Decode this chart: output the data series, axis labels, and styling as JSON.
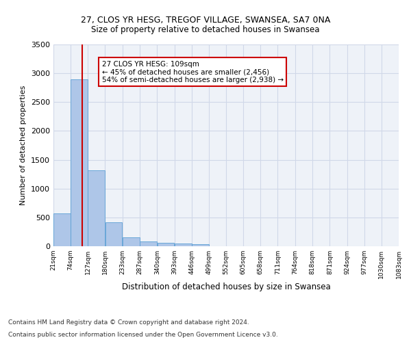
{
  "title1": "27, CLOS YR HESG, TREGOF VILLAGE, SWANSEA, SA7 0NA",
  "title2": "Size of property relative to detached houses in Swansea",
  "xlabel": "Distribution of detached houses by size in Swansea",
  "ylabel": "Number of detached properties",
  "footnote1": "Contains HM Land Registry data © Crown copyright and database right 2024.",
  "footnote2": "Contains public sector information licensed under the Open Government Licence v3.0.",
  "annotation_title": "27 CLOS YR HESG: 109sqm",
  "annotation_line1": "← 45% of detached houses are smaller (2,456)",
  "annotation_line2": "54% of semi-detached houses are larger (2,938) →",
  "property_size": 109,
  "bar_edges": [
    21,
    74,
    127,
    180,
    233,
    287,
    340,
    393,
    446,
    499,
    552,
    605,
    658,
    711,
    764,
    818,
    871,
    924,
    977,
    1030,
    1083
  ],
  "bar_heights": [
    570,
    2900,
    1320,
    410,
    150,
    80,
    55,
    45,
    35,
    0,
    0,
    0,
    0,
    0,
    0,
    0,
    0,
    0,
    0,
    0
  ],
  "bar_color": "#aec6e8",
  "bar_edge_color": "#5a9fd4",
  "vline_color": "#cc0000",
  "vline_x": 109,
  "ylim": [
    0,
    3500
  ],
  "yticks": [
    0,
    500,
    1000,
    1500,
    2000,
    2500,
    3000,
    3500
  ],
  "grid_color": "#d0d8e8",
  "bg_color": "#eef2f8",
  "annotation_box_color": "#cc0000",
  "title1_fontsize": 9,
  "title2_fontsize": 8.5,
  "xlabel_fontsize": 8.5,
  "ylabel_fontsize": 8,
  "footnote_fontsize": 6.5
}
